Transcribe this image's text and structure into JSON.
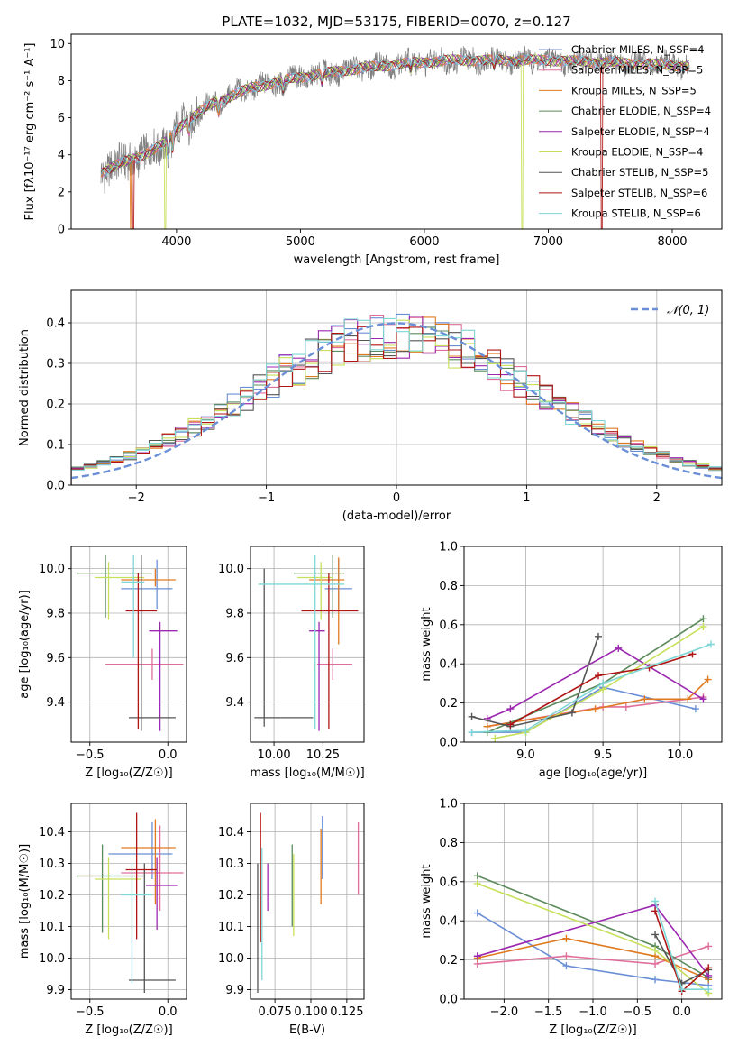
{
  "chart_data": [
    {
      "id": "spectrum",
      "type": "line",
      "title": "PLATE=1032, MJD=53175, FIBERID=0070, z=0.127",
      "xlabel": "wavelength [Angstrom, rest frame]",
      "ylabel": "Flux [fλ10⁻¹⁷ erg cm⁻² s⁻¹ A⁻¹]",
      "xlim": [
        3150,
        8400
      ],
      "ylim": [
        0,
        10.5
      ],
      "xticks": [
        4000,
        5000,
        6000,
        7000,
        8000
      ],
      "yticks": [
        0,
        2,
        4,
        6,
        8,
        10
      ],
      "grid": false,
      "legend_position": "top-right",
      "continuum": {
        "x": [
          3400,
          3500,
          3700,
          3900,
          4050,
          4300,
          4600,
          5000,
          5400,
          5800,
          6200,
          6600,
          7000,
          7400,
          7800,
          8100
        ],
        "y": [
          3.1,
          3.4,
          3.9,
          4.6,
          5.7,
          6.8,
          7.6,
          8.2,
          8.6,
          8.9,
          9.1,
          9.1,
          9.1,
          9.0,
          8.9,
          8.8
        ]
      },
      "series": [
        {
          "name": "Chabrier MILES, N_SSP=4",
          "color": "#6b8fd6",
          "drops": []
        },
        {
          "name": "Salpeter MILES, N_SSP=5",
          "color": "#e06e9a",
          "drops": []
        },
        {
          "name": "Kroupa MILES, N_SSP=5",
          "color": "#e07a20",
          "drops": [
            3630
          ]
        },
        {
          "name": "Chabrier ELODIE, N_SSP=4",
          "color": "#5b8a5b",
          "drops": []
        },
        {
          "name": "Salpeter ELODIE, N_SSP=4",
          "color": "#9c27b0",
          "drops": []
        },
        {
          "name": "Kroupa ELODIE, N_SSP=4",
          "color": "#c6e05a",
          "drops": [
            3910,
            6790
          ]
        },
        {
          "name": "Chabrier STELIB, N_SSP=5",
          "color": "#555555",
          "drops": []
        },
        {
          "name": "Salpeter STELIB, N_SSP=6",
          "color": "#b01515",
          "drops": [
            3650,
            7430
          ]
        },
        {
          "name": "Kroupa STELIB, N_SSP=6",
          "color": "#7fd6d6",
          "drops": []
        }
      ],
      "data_series": {
        "name": "",
        "color": "#808080"
      }
    },
    {
      "id": "residuals",
      "type": "line",
      "xlabel": "(data-model)/error",
      "ylabel": "Normed distribution",
      "xlim": [
        -2.5,
        2.5
      ],
      "ylim": [
        0,
        0.48
      ],
      "xticks": [
        -2,
        -1,
        0,
        1,
        2
      ],
      "yticks": [
        0.0,
        0.1,
        0.2,
        0.3,
        0.4
      ],
      "grid": true,
      "bin_edges_start": -2.5,
      "bin_width": 0.1,
      "normal_curve": {
        "label": "𝒩(0, 1)",
        "color": "#6b8fd6"
      },
      "legend_position": "top-right"
    },
    {
      "id": "age_vs_Z",
      "type": "scatter",
      "xlabel": "Z [log₁₀(Z/Z☉)]",
      "ylabel": "age  [log₁₀(age/yr)]",
      "xlim": [
        -0.62,
        0.12
      ],
      "ylim": [
        9.22,
        10.1
      ],
      "xticks": [
        -0.5,
        0.0
      ],
      "yticks": [
        9.4,
        9.6,
        9.8,
        10.0
      ],
      "grid": true,
      "points": [
        {
          "color": "#6b8fd6",
          "x": -0.07,
          "y": 9.91,
          "xlo": -0.3,
          "xhi": 0.03,
          "ylo": 9.82,
          "yhi": 10.04
        },
        {
          "color": "#e06e9a",
          "x": -0.1,
          "y": 9.57,
          "xlo": -0.4,
          "xhi": 0.1,
          "ylo": 9.5,
          "yhi": 9.64
        },
        {
          "color": "#e07a20",
          "x": -0.08,
          "y": 9.95,
          "xlo": -0.3,
          "xhi": 0.05,
          "ylo": 9.92,
          "yhi": 10.0
        },
        {
          "color": "#5b8a5b",
          "x": -0.4,
          "y": 9.98,
          "xlo": -0.58,
          "xhi": -0.1,
          "ylo": 9.78,
          "yhi": 10.06
        },
        {
          "color": "#9c27b0",
          "x": -0.05,
          "y": 9.72,
          "xlo": -0.12,
          "xhi": 0.06,
          "ylo": 9.27,
          "yhi": 9.76
        },
        {
          "color": "#c6e05a",
          "x": -0.38,
          "y": 9.96,
          "xlo": -0.47,
          "xhi": -0.15,
          "ylo": 9.77,
          "yhi": 10.03
        },
        {
          "color": "#555555",
          "x": -0.17,
          "y": 9.33,
          "xlo": -0.25,
          "xhi": 0.05,
          "ylo": 9.27,
          "yhi": 10.06
        },
        {
          "color": "#b01515",
          "x": -0.19,
          "y": 9.81,
          "xlo": -0.27,
          "xhi": -0.07,
          "ylo": 9.28,
          "yhi": 9.98
        },
        {
          "color": "#7fd6d6",
          "x": -0.22,
          "y": 9.94,
          "xlo": -0.3,
          "xhi": -0.15,
          "ylo": 9.6,
          "yhi": 10.06
        }
      ]
    },
    {
      "id": "age_vs_mass",
      "type": "scatter",
      "xlabel": "mass [log₁₀(M/M☉)]",
      "ylabel": "",
      "xlim": [
        9.88,
        10.46
      ],
      "ylim": [
        9.22,
        10.1
      ],
      "xticks": [
        10.0,
        10.25
      ],
      "xticklabels": [
        "10.00",
        "10.25"
      ],
      "yticks": [
        9.4,
        9.6,
        9.8,
        10.0
      ],
      "grid": true,
      "points": [
        {
          "color": "#6b8fd6",
          "x": 10.33,
          "y": 9.91,
          "xlo": 10.26,
          "xhi": 10.4,
          "ylo": 9.82,
          "yhi": 10.04
        },
        {
          "color": "#e06e9a",
          "x": 10.3,
          "y": 9.57,
          "xlo": 10.22,
          "xhi": 10.4,
          "ylo": 9.5,
          "yhi": 9.64
        },
        {
          "color": "#e07a20",
          "x": 10.33,
          "y": 9.95,
          "xlo": 10.18,
          "xhi": 10.36,
          "ylo": 9.66,
          "yhi": 10.05
        },
        {
          "color": "#5b8a5b",
          "x": 10.3,
          "y": 9.98,
          "xlo": 10.1,
          "xhi": 10.36,
          "ylo": 9.78,
          "yhi": 10.06
        },
        {
          "color": "#9c27b0",
          "x": 10.23,
          "y": 9.72,
          "xlo": 10.18,
          "xhi": 10.26,
          "ylo": 9.27,
          "yhi": 9.76
        },
        {
          "color": "#c6e05a",
          "x": 10.24,
          "y": 9.96,
          "xlo": 10.12,
          "xhi": 10.3,
          "ylo": 9.77,
          "yhi": 10.03
        },
        {
          "color": "#555555",
          "x": 9.95,
          "y": 9.33,
          "xlo": 9.9,
          "xhi": 10.2,
          "ylo": 9.29,
          "yhi": 10.0
        },
        {
          "color": "#b01515",
          "x": 10.28,
          "y": 9.81,
          "xlo": 10.14,
          "xhi": 10.43,
          "ylo": 9.28,
          "yhi": 9.98
        },
        {
          "color": "#7fd6d6",
          "x": 10.21,
          "y": 9.93,
          "xlo": 9.92,
          "xhi": 10.36,
          "ylo": 9.28,
          "yhi": 10.06
        }
      ]
    },
    {
      "id": "weight_vs_age",
      "type": "line",
      "xlabel": "age  [log₁₀(age/yr)]",
      "ylabel": "mass weight",
      "xlim": [
        8.6,
        10.27
      ],
      "ylim": [
        0,
        1.0
      ],
      "xticks": [
        9.0,
        9.5,
        10.0
      ],
      "yticks": [
        0.0,
        0.2,
        0.4,
        0.6,
        0.8,
        1.0
      ],
      "grid": true,
      "series": [
        {
          "color": "#6b8fd6",
          "x": [
            8.65,
            9.0,
            9.5,
            10.1
          ],
          "y": [
            0.05,
            0.05,
            0.28,
            0.17
          ]
        },
        {
          "color": "#e06e9a",
          "x": [
            8.75,
            9.5,
            9.65,
            10.15
          ],
          "y": [
            0.08,
            0.18,
            0.18,
            0.23
          ]
        },
        {
          "color": "#e07a20",
          "x": [
            8.75,
            9.45,
            9.77,
            10.05,
            10.18
          ],
          "y": [
            0.08,
            0.17,
            0.22,
            0.22,
            0.32
          ]
        },
        {
          "color": "#5b8a5b",
          "x": [
            8.75,
            9.5,
            10.15
          ],
          "y": [
            0.05,
            0.3,
            0.63
          ]
        },
        {
          "color": "#9c27b0",
          "x": [
            8.75,
            8.9,
            9.6,
            10.15
          ],
          "y": [
            0.12,
            0.17,
            0.48,
            0.22
          ]
        },
        {
          "color": "#c6e05a",
          "x": [
            8.8,
            9.0,
            9.5,
            10.15
          ],
          "y": [
            0.02,
            0.05,
            0.27,
            0.59
          ]
        },
        {
          "color": "#555555",
          "x": [
            8.65,
            8.9,
            9.3,
            9.47
          ],
          "y": [
            0.13,
            0.08,
            0.15,
            0.54
          ]
        },
        {
          "color": "#b01515",
          "x": [
            8.9,
            9.47,
            9.8,
            10.08
          ],
          "y": [
            0.09,
            0.34,
            0.38,
            0.45
          ]
        },
        {
          "color": "#7fd6d6",
          "x": [
            8.65,
            9.0,
            9.5,
            10.2
          ],
          "y": [
            0.05,
            0.06,
            0.3,
            0.5
          ]
        }
      ]
    },
    {
      "id": "mass_vs_Z",
      "type": "scatter",
      "xlabel": "Z [log₁₀(Z/Z☉)]",
      "ylabel": "mass [log₁₀(M/M☉)]",
      "xlim": [
        -0.62,
        0.12
      ],
      "ylim": [
        9.87,
        10.49
      ],
      "xticks": [
        -0.5,
        0.0
      ],
      "yticks": [
        9.9,
        10.0,
        10.1,
        10.2,
        10.3,
        10.4
      ],
      "grid": true,
      "points": [
        {
          "color": "#6b8fd6",
          "x": -0.1,
          "y": 10.33,
          "xlo": -0.38,
          "xhi": 0.03,
          "ylo": 10.25,
          "yhi": 10.43
        },
        {
          "color": "#e06e9a",
          "x": -0.05,
          "y": 10.27,
          "xlo": -0.3,
          "xhi": 0.1,
          "ylo": 10.15,
          "yhi": 10.42
        },
        {
          "color": "#e07a20",
          "x": -0.08,
          "y": 10.35,
          "xlo": -0.3,
          "xhi": 0.05,
          "ylo": 10.17,
          "yhi": 10.44
        },
        {
          "color": "#5b8a5b",
          "x": -0.42,
          "y": 10.26,
          "xlo": -0.58,
          "xhi": -0.15,
          "ylo": 10.08,
          "yhi": 10.36
        },
        {
          "color": "#9c27b0",
          "x": -0.07,
          "y": 10.23,
          "xlo": -0.14,
          "xhi": 0.06,
          "ylo": 10.09,
          "yhi": 10.32
        },
        {
          "color": "#c6e05a",
          "x": -0.38,
          "y": 10.25,
          "xlo": -0.47,
          "xhi": -0.17,
          "ylo": 10.06,
          "yhi": 10.32
        },
        {
          "color": "#555555",
          "x": -0.15,
          "y": 9.93,
          "xlo": -0.25,
          "xhi": 0.05,
          "ylo": 9.89,
          "yhi": 10.3
        },
        {
          "color": "#b01515",
          "x": -0.2,
          "y": 10.28,
          "xlo": -0.27,
          "xhi": -0.07,
          "ylo": 10.06,
          "yhi": 10.46
        },
        {
          "color": "#7fd6d6",
          "x": -0.23,
          "y": 10.2,
          "xlo": -0.3,
          "xhi": -0.1,
          "ylo": 9.92,
          "yhi": 10.3
        }
      ]
    },
    {
      "id": "mass_vs_ebv",
      "type": "scatter",
      "xlabel": "E(B-V)",
      "ylabel": "",
      "xlim": [
        0.058,
        0.137
      ],
      "ylim": [
        9.87,
        10.49
      ],
      "xticks": [
        0.075,
        0.1,
        0.125
      ],
      "xticklabels": [
        "0.075",
        "0.100",
        "0.125"
      ],
      "yticks": [
        9.9,
        10.0,
        10.1,
        10.2,
        10.3,
        10.4
      ],
      "grid": true,
      "points": [
        {
          "color": "#6b8fd6",
          "x": 0.108,
          "y": 10.33,
          "ylo": 10.25,
          "yhi": 10.45
        },
        {
          "color": "#e06e9a",
          "x": 0.133,
          "y": 10.3,
          "ylo": 10.2,
          "yhi": 10.43
        },
        {
          "color": "#e07a20",
          "x": 0.107,
          "y": 10.3,
          "ylo": 10.17,
          "yhi": 10.41
        },
        {
          "color": "#5b8a5b",
          "x": 0.087,
          "y": 10.3,
          "ylo": 10.1,
          "yhi": 10.36
        },
        {
          "color": "#9c27b0",
          "x": 0.07,
          "y": 10.24,
          "ylo": 10.15,
          "yhi": 10.3
        },
        {
          "color": "#c6e05a",
          "x": 0.088,
          "y": 10.25,
          "ylo": 10.07,
          "yhi": 10.33
        },
        {
          "color": "#555555",
          "x": 0.063,
          "y": 10.1,
          "ylo": 9.89,
          "yhi": 10.3
        },
        {
          "color": "#b01515",
          "x": 0.065,
          "y": 10.3,
          "ylo": 10.05,
          "yhi": 10.46
        },
        {
          "color": "#7fd6d6",
          "x": 0.066,
          "y": 10.2,
          "ylo": 9.93,
          "yhi": 10.35
        }
      ]
    },
    {
      "id": "weight_vs_Z",
      "type": "line",
      "xlabel": "Z [log₁₀(Z/Z☉)]",
      "ylabel": "mass weight",
      "xlim": [
        -2.45,
        0.45
      ],
      "ylim": [
        0,
        1.0
      ],
      "xticks": [
        -2.0,
        -1.5,
        -1.0,
        -0.5,
        0.0
      ],
      "yticks": [
        0.0,
        0.2,
        0.4,
        0.6,
        0.8,
        1.0
      ],
      "grid": true,
      "series": [
        {
          "color": "#6b8fd6",
          "x": [
            -2.3,
            -1.3,
            -0.3,
            0.3
          ],
          "y": [
            0.44,
            0.17,
            0.1,
            0.07
          ]
        },
        {
          "color": "#e06e9a",
          "x": [
            -2.3,
            -1.3,
            -0.3,
            0.3
          ],
          "y": [
            0.18,
            0.22,
            0.18,
            0.27
          ]
        },
        {
          "color": "#e07a20",
          "x": [
            -2.3,
            -1.3,
            -0.3,
            0.3
          ],
          "y": [
            0.21,
            0.31,
            0.22,
            0.1
          ]
        },
        {
          "color": "#5b8a5b",
          "x": [
            -2.3,
            -0.3,
            0.3
          ],
          "y": [
            0.63,
            0.27,
            0.11
          ]
        },
        {
          "color": "#9c27b0",
          "x": [
            -2.3,
            -0.3,
            0.3
          ],
          "y": [
            0.22,
            0.48,
            0.12
          ]
        },
        {
          "color": "#c6e05a",
          "x": [
            -2.3,
            -0.3,
            0.3
          ],
          "y": [
            0.59,
            0.25,
            0.03
          ]
        },
        {
          "color": "#555555",
          "x": [
            -0.3,
            0.0,
            0.3
          ],
          "y": [
            0.33,
            0.08,
            0.15
          ]
        },
        {
          "color": "#b01515",
          "x": [
            -0.3,
            0.0,
            0.3
          ],
          "y": [
            0.45,
            0.04,
            0.16
          ]
        },
        {
          "color": "#7fd6d6",
          "x": [
            -0.3,
            0.0,
            0.3
          ],
          "y": [
            0.5,
            0.05,
            0.05
          ]
        }
      ]
    }
  ]
}
